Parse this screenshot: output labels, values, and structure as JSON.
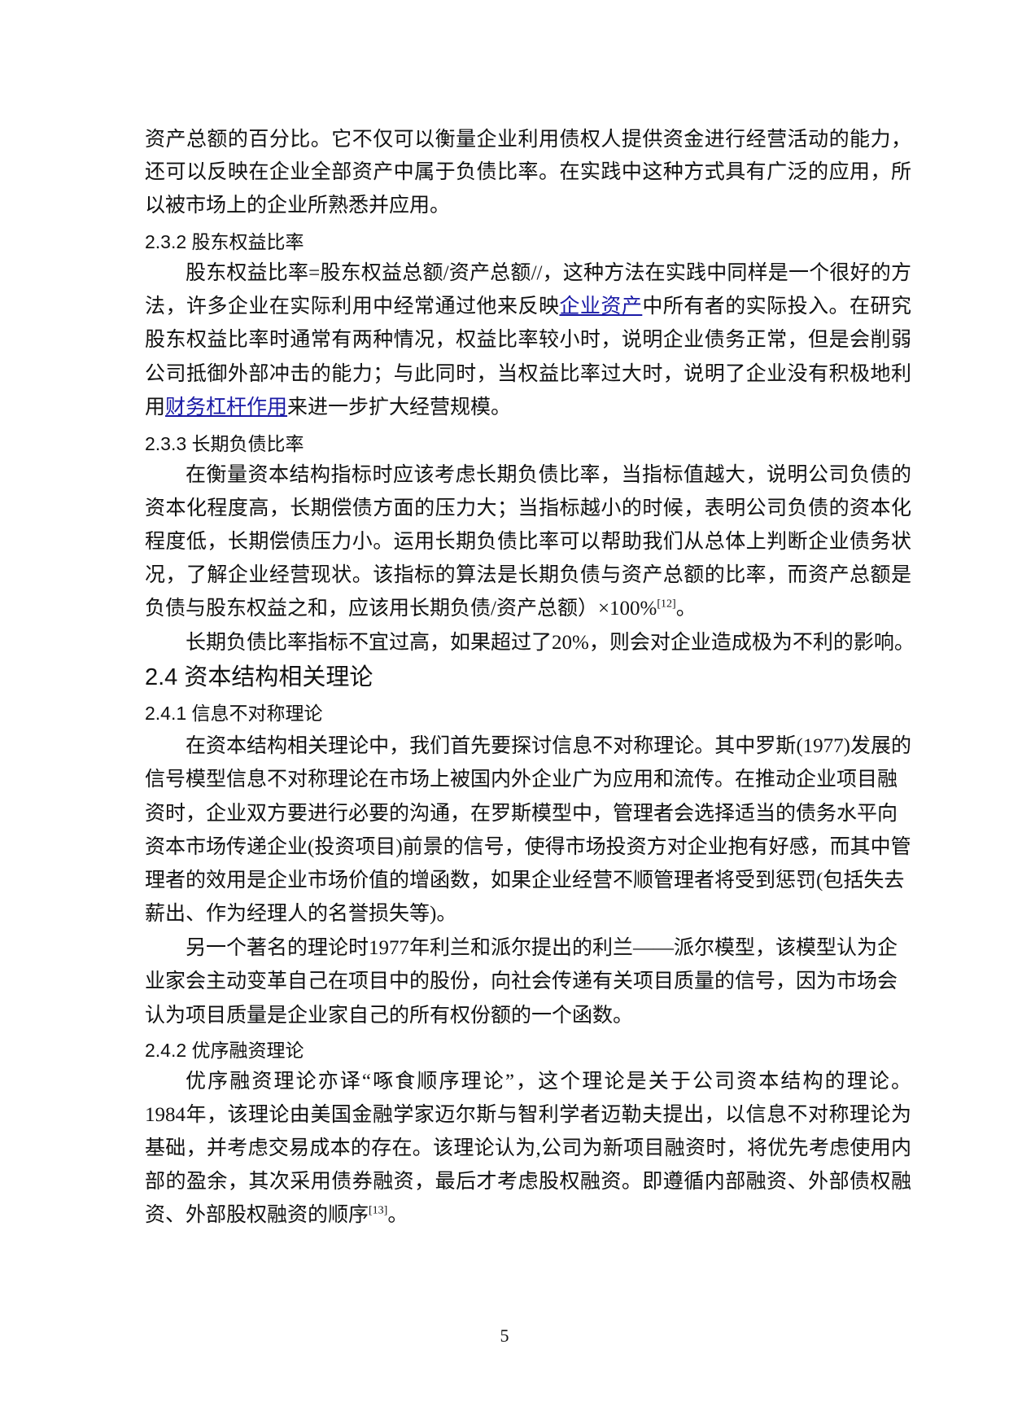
{
  "page_number": "5",
  "lines": [
    {
      "kind": "p",
      "full": true,
      "seg": [
        {
          "t": "资产总额的百分比。它不仅可以衡量企业利用债权人提供资金进行经营活动的能力，"
        }
      ]
    },
    {
      "kind": "p",
      "full": true,
      "seg": [
        {
          "t": "还可以反映在企业全部资产中属于负债比率。在实践中这种方式具有广泛的应用，所"
        }
      ]
    },
    {
      "kind": "p",
      "seg": [
        {
          "t": "以被市场上的企业所熟悉并应用。"
        }
      ]
    },
    {
      "kind": "h3",
      "seg": [
        {
          "t": "2.3.2  股东权益比率"
        }
      ]
    },
    {
      "kind": "p",
      "ind": true,
      "full": true,
      "seg": [
        {
          "t": "股东权益比率=股东权益总额/资产总额//，这种方法在实践中同样是一个很好的方"
        }
      ]
    },
    {
      "kind": "p",
      "full": true,
      "seg": [
        {
          "t": "法，许多企业在实际利用中经常通过他来反映"
        },
        {
          "t": "企业资产",
          "link": true
        },
        {
          "t": "中所有者的实际投入。在研究"
        }
      ]
    },
    {
      "kind": "p",
      "full": true,
      "seg": [
        {
          "t": "股东权益比率时通常有两种情况，权益比率较小时，说明企业债务正常，但是会削弱"
        }
      ]
    },
    {
      "kind": "p",
      "full": true,
      "seg": [
        {
          "t": "公司抵御外部冲击的能力；与此同时，当权益比率过大时，说明了企业没有积极地利"
        }
      ]
    },
    {
      "kind": "p",
      "seg": [
        {
          "t": "用"
        },
        {
          "t": "财务杠杆作用",
          "link": true
        },
        {
          "t": "来进一步扩大经营规模。"
        }
      ]
    },
    {
      "kind": "h3",
      "seg": [
        {
          "t": "2.3.3  长期负债比率"
        }
      ]
    },
    {
      "kind": "p",
      "ind": true,
      "full": true,
      "seg": [
        {
          "t": "在衡量资本结构指标时应该考虑长期负债比率，当指标值越大，说明公司负债的"
        }
      ]
    },
    {
      "kind": "p",
      "full": true,
      "seg": [
        {
          "t": "资本化程度高，长期偿债方面的压力大；当指标越小的时候，表明公司负债的资本化"
        }
      ]
    },
    {
      "kind": "p",
      "full": true,
      "seg": [
        {
          "t": "程度低，长期偿债压力小。运用长期负债比率可以帮助我们从总体上判断企业债务状"
        }
      ]
    },
    {
      "kind": "p",
      "full": true,
      "seg": [
        {
          "t": "况，了解企业经营现状。该指标的算法是长期负债与资产总额的比率，而资产总额是"
        }
      ]
    },
    {
      "kind": "p",
      "seg": [
        {
          "t": "负债与股东权益之和，应该用长期负债/资产总额）×100%"
        },
        {
          "t": "[12]",
          "sup": true
        },
        {
          "t": "。"
        }
      ]
    },
    {
      "kind": "p",
      "ind": true,
      "seg": [
        {
          "t": "长期负债比率指标不宜过高，如果超过了20%，则会对企业造成极为不利的影响。"
        }
      ]
    },
    {
      "kind": "h2",
      "seg": [
        {
          "t": "2.4  资本结构相关理论"
        }
      ]
    },
    {
      "kind": "h3",
      "seg": [
        {
          "t": "2.4.1  信息不对称理论"
        }
      ]
    },
    {
      "kind": "p",
      "ind": true,
      "full": true,
      "seg": [
        {
          "t": "在资本结构相关理论中，我们首先要探讨信息不对称理论。其中罗斯(1977)发展的"
        }
      ]
    },
    {
      "kind": "p",
      "seg": [
        {
          "t": "信号模型信息不对称理论在市场上被国内外企业广为应用和流传。在推动企业项目融"
        }
      ]
    },
    {
      "kind": "p",
      "seg": [
        {
          "t": "资时，企业双方要进行必要的沟通，在罗斯模型中，管理者会选择适当的债务水平向"
        }
      ]
    },
    {
      "kind": "p",
      "seg": [
        {
          "t": "资本市场传递企业(投资项目)前景的信号，使得市场投资方对企业抱有好感，而其中管"
        }
      ]
    },
    {
      "kind": "p",
      "seg": [
        {
          "t": "理者的效用是企业市场价值的增函数，如果企业经营不顺管理者将受到惩罚(包括失去"
        }
      ]
    },
    {
      "kind": "p",
      "seg": [
        {
          "t": "薪出、作为经理人的名誉损失等)。"
        }
      ]
    },
    {
      "kind": "p",
      "ind": true,
      "seg": [
        {
          "t": "另一个著名的理论时1977年利兰和派尔提出的利兰——派尔模型，该模型认为企"
        }
      ]
    },
    {
      "kind": "p",
      "seg": [
        {
          "t": "业家会主动变革自己在项目中的股份，向社会传递有关项目质量的信号，因为市场会"
        }
      ]
    },
    {
      "kind": "p",
      "seg": [
        {
          "t": "认为项目质量是企业家自己的所有权份额的一个函数。"
        }
      ]
    },
    {
      "kind": "h3",
      "seg": [
        {
          "t": "2.4.2  优序融资理论"
        }
      ]
    },
    {
      "kind": "p",
      "ind": true,
      "full": true,
      "seg": [
        {
          "t": "优序融资理论亦译“啄食顺序理论”，这个理论是关于公司资本结构的理论。"
        }
      ]
    },
    {
      "kind": "p",
      "full": true,
      "seg": [
        {
          "t": "1984年，该理论由美国金融学家迈尔斯与智利学者迈勒夫提出，以信息不对称理论为"
        }
      ]
    },
    {
      "kind": "p",
      "full": true,
      "seg": [
        {
          "t": "基础，并考虑交易成本的存在。该理论认为,公司为新项目融资时，将优先考虑使用内"
        }
      ]
    },
    {
      "kind": "p",
      "full": true,
      "seg": [
        {
          "t": "部的盈余，其次采用债券融资，最后才考虑股权融资。即遵循内部融资、外部债权融"
        }
      ]
    },
    {
      "kind": "p",
      "seg": [
        {
          "t": "资、外部股权融资的顺序"
        },
        {
          "t": "[13]",
          "sup": true
        },
        {
          "t": "。"
        }
      ]
    }
  ],
  "colors": {
    "text": "#111111",
    "link": "#1a1aa6"
  }
}
